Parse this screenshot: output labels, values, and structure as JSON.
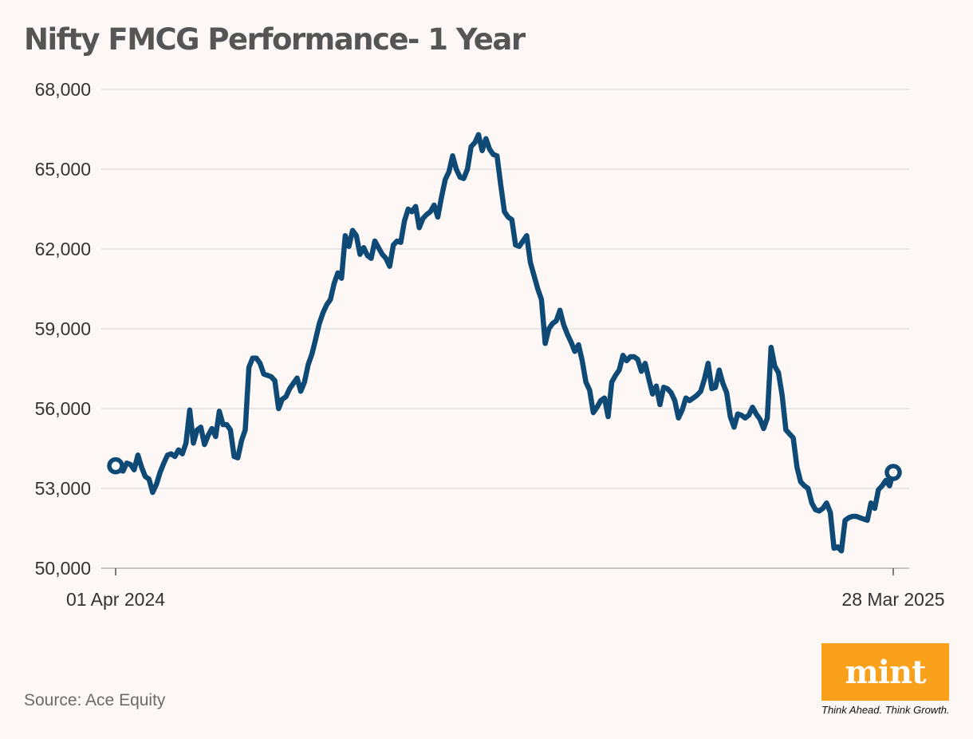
{
  "colors": {
    "background": "#fdf8f6",
    "line": "#0e4a75",
    "grid": "#dcdcdc",
    "logo_bg": "#f9a11b"
  },
  "chart_data": {
    "type": "line",
    "title": "Nifty FMCG Performance- 1 Year",
    "xlabel": "",
    "ylabel": "",
    "ylim": [
      50000,
      68000
    ],
    "yticks": [
      50000,
      53000,
      56000,
      59000,
      62000,
      65000,
      68000
    ],
    "ytick_labels": [
      "50,000",
      "53,000",
      "56,000",
      "59,000",
      "62,000",
      "65,000",
      "68,000"
    ],
    "xtick_labels": [
      "01 Apr 2024",
      "28 Mar 2025"
    ],
    "grid": true,
    "legend": "none",
    "markers": "first-and-last",
    "series": [
      {
        "values": [
          53850,
          53700,
          53650,
          53950,
          53900,
          53700,
          54250,
          53800,
          53450,
          53350,
          52850,
          53150,
          53600,
          53950,
          54250,
          54300,
          54200,
          54450,
          54300,
          54700,
          55950,
          54700,
          55200,
          55300,
          54650,
          55000,
          55250,
          54950,
          55900,
          55400,
          55400,
          55200,
          54200,
          54150,
          54800,
          55200,
          57550,
          57900,
          57900,
          57700,
          57300,
          57250,
          57200,
          57050,
          56000,
          56350,
          56450,
          56750,
          56950,
          57150,
          56650,
          57000,
          57650,
          58050,
          58600,
          59200,
          59600,
          59900,
          60100,
          60700,
          61100,
          60900,
          62500,
          62100,
          62700,
          62500,
          61800,
          62050,
          61750,
          61650,
          62300,
          62050,
          61800,
          61650,
          61350,
          62150,
          62300,
          62250,
          63050,
          63500,
          63400,
          63600,
          62800,
          63150,
          63300,
          63400,
          63650,
          63200,
          63950,
          64600,
          64900,
          65500,
          65000,
          64700,
          64650,
          65000,
          65850,
          66000,
          66300,
          65700,
          66150,
          65750,
          65550,
          65500,
          64400,
          63400,
          63200,
          63100,
          62150,
          62100,
          62300,
          62500,
          61500,
          61000,
          60500,
          60100,
          58450,
          59000,
          59200,
          59300,
          59700,
          59150,
          58800,
          58500,
          58150,
          58400,
          57800,
          57000,
          56700,
          55850,
          56050,
          56300,
          56400,
          55700,
          57000,
          57250,
          57450,
          58000,
          57800,
          57950,
          57950,
          57850,
          57400,
          57700,
          57100,
          56550,
          56850,
          56150,
          56800,
          56750,
          56600,
          56300,
          55650,
          55950,
          56400,
          56300,
          56400,
          56500,
          56650,
          57100,
          57700,
          56750,
          56800,
          57450,
          56950,
          56600,
          55700,
          55300,
          55800,
          55750,
          55650,
          55750,
          56050,
          55800,
          55600,
          55250,
          55650,
          58300,
          57600,
          57350,
          56500,
          55200,
          55050,
          54900,
          53800,
          53250,
          53100,
          53000,
          52450,
          52200,
          52150,
          52250,
          52450,
          52100,
          50750,
          50800,
          50650,
          51800,
          51900,
          51950,
          51950,
          51900,
          51850,
          51800,
          52450,
          52250,
          52950,
          53100,
          53300,
          53100,
          53600
        ]
      }
    ]
  },
  "source": "Source: Ace Equity",
  "logo": {
    "word": "mint",
    "tagline": "Think Ahead. Think Growth."
  }
}
